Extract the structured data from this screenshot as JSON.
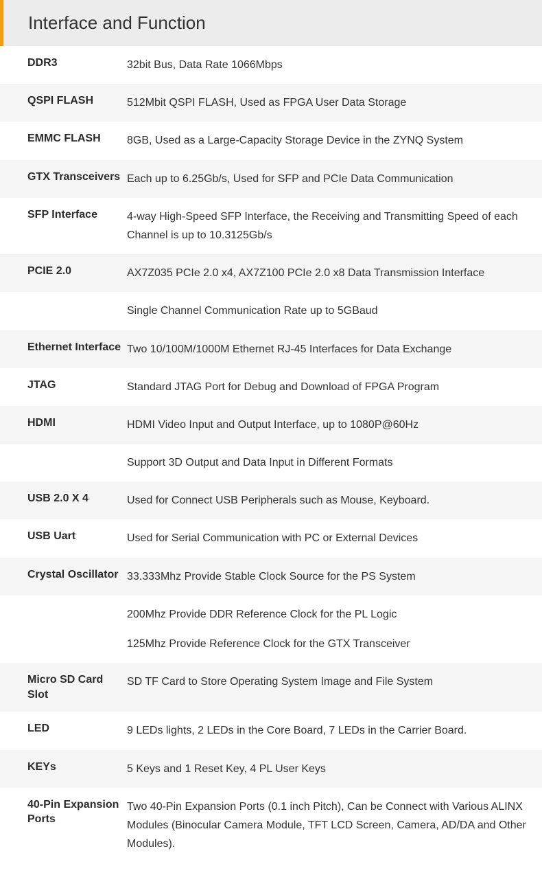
{
  "header": {
    "title": "Interface and Function"
  },
  "rows": [
    {
      "label": "DDR3",
      "lines": [
        "32bit Bus, Data Rate 1066Mbps"
      ],
      "shade": false
    },
    {
      "label": "QSPI FLASH",
      "lines": [
        "512Mbit QSPI FLASH, Used as FPGA User Data Storage"
      ],
      "shade": true
    },
    {
      "label": "EMMC FLASH",
      "lines": [
        "8GB, Used as a Large-Capacity Storage Device in the ZYNQ System"
      ],
      "shade": false
    },
    {
      "label": "GTX Transceivers",
      "lines": [
        "Each up to 6.25Gb/s, Used for SFP and PCIe Data Communication"
      ],
      "shade": true
    },
    {
      "label": "SFP Interface",
      "lines": [
        "4-way High-Speed SFP Interface, the Receiving and Transmitting Speed of each Channel is up to 10.3125Gb/s"
      ],
      "shade": false
    },
    {
      "label": "PCIE 2.0",
      "lines": [
        "AX7Z035 PCIe 2.0 x4, AX7Z100 PCIe 2.0 x8 Data Transmission Interface"
      ],
      "shade": true
    },
    {
      "label": "",
      "lines": [
        "Single Channel Communication Rate up to 5GBaud"
      ],
      "shade": false
    },
    {
      "label": "Ethernet Interface",
      "lines": [
        "Two 10/100M/1000M Ethernet RJ-45 Interfaces for Data Exchange"
      ],
      "shade": true
    },
    {
      "label": "JTAG",
      "lines": [
        "Standard JTAG Port for Debug and Download of FPGA Program"
      ],
      "shade": false
    },
    {
      "label": "HDMI",
      "lines": [
        "HDMI Video Input and Output Interface, up to 1080P@60Hz"
      ],
      "shade": true
    },
    {
      "label": "",
      "lines": [
        "Support 3D Output and Data Input in Different Formats"
      ],
      "shade": false
    },
    {
      "label": "USB 2.0 X 4",
      "lines": [
        "Used for Connect USB Peripherals such as Mouse, Keyboard."
      ],
      "shade": true
    },
    {
      "label": "USB Uart",
      "lines": [
        "Used for Serial Communication with PC or External Devices"
      ],
      "shade": false
    },
    {
      "label": "Crystal Oscillator",
      "lines": [
        "33.333Mhz Provide Stable Clock Source for the PS System"
      ],
      "shade": true
    },
    {
      "label": "",
      "lines": [
        "200Mhz Provide DDR Reference Clock for the PL Logic",
        "125Mhz Provide Reference Clock for the GTX Transceiver"
      ],
      "shade": false
    },
    {
      "label": "Micro SD Card Slot",
      "lines": [
        "SD TF Card to Store Operating System Image and File System"
      ],
      "shade": true
    },
    {
      "label": "LED",
      "lines": [
        "9 LEDs lights, 2 LEDs in the Core Board, 7 LEDs in the Carrier Board."
      ],
      "shade": false
    },
    {
      "label": "KEYs",
      "lines": [
        "5 Keys and 1 Reset Key, 4 PL User Keys"
      ],
      "shade": true
    },
    {
      "label": "40-Pin Expansion Ports",
      "lines": [
        "Two 40-Pin Expansion Ports (0.1 inch Pitch), Can be Connect with Various ALINX Modules (Binocular Camera Module, TFT LCD Screen, Camera, AD/DA and Other Modules)."
      ],
      "shade": false
    }
  ],
  "colors": {
    "accent": "#f39c12",
    "header_bg": "#ececec",
    "row_shade": "#f5f5f5",
    "text": "#333333"
  }
}
